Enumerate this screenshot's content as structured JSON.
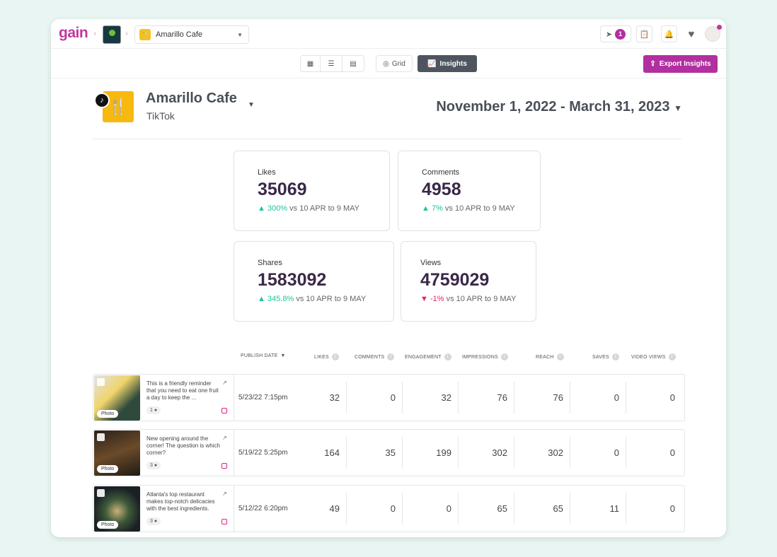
{
  "header": {
    "logo": "gain",
    "account_select": "Amarillo Cafe",
    "notifications_count": "1"
  },
  "toolbar": {
    "grid_label": "Grid",
    "insights_label": "Insights",
    "export_label": "Export Insights"
  },
  "account": {
    "name": "Amarillo Cafe",
    "network": "TikTok",
    "date_range": "November 1, 2022 - March 31, 2023"
  },
  "stats": [
    {
      "label": "Likes",
      "value": "35069",
      "change": "300%",
      "direction": "up",
      "compare": "vs 10 APR to 9 MAY"
    },
    {
      "label": "Comments",
      "value": "4958",
      "change": "7%",
      "direction": "up",
      "compare": "vs 10 APR to 9 MAY"
    },
    {
      "label": "Shares",
      "value": "1583092",
      "change": "345.8%",
      "direction": "up",
      "compare": "vs 10 APR to 9 MAY"
    },
    {
      "label": "Views",
      "value": "4759029",
      "change": "-1%",
      "direction": "down",
      "compare": "vs 10 APR to 9 MAY"
    }
  ],
  "table": {
    "columns": [
      "PUBLISH DATE",
      "LIKES",
      "COMMENTS",
      "ENGAGEMENT",
      "IMPRESSIONS",
      "REACH",
      "SAVES",
      "VIDEO VIEWS"
    ],
    "rows": [
      {
        "type": "Photo",
        "caption": "This is a friendly reminder that you need to eat one fruit a day to keep the ...",
        "tags": "1",
        "date": "5/23/22 7:15pm",
        "values": [
          "32",
          "0",
          "32",
          "76",
          "76",
          "0",
          "0"
        ]
      },
      {
        "type": "Photo",
        "caption": "New opening around the corner! The question is which corner?",
        "tags": "3",
        "date": "5/19/22 5:25pm",
        "values": [
          "164",
          "35",
          "199",
          "302",
          "302",
          "0",
          "0"
        ]
      },
      {
        "type": "Photo",
        "caption": "Atlanta's top restaurant makes top-notch delicacies with the best ingredients.",
        "tags": "3",
        "date": "5/12/22 6:20pm",
        "values": [
          "49",
          "0",
          "0",
          "65",
          "65",
          "11",
          "0"
        ]
      }
    ]
  }
}
